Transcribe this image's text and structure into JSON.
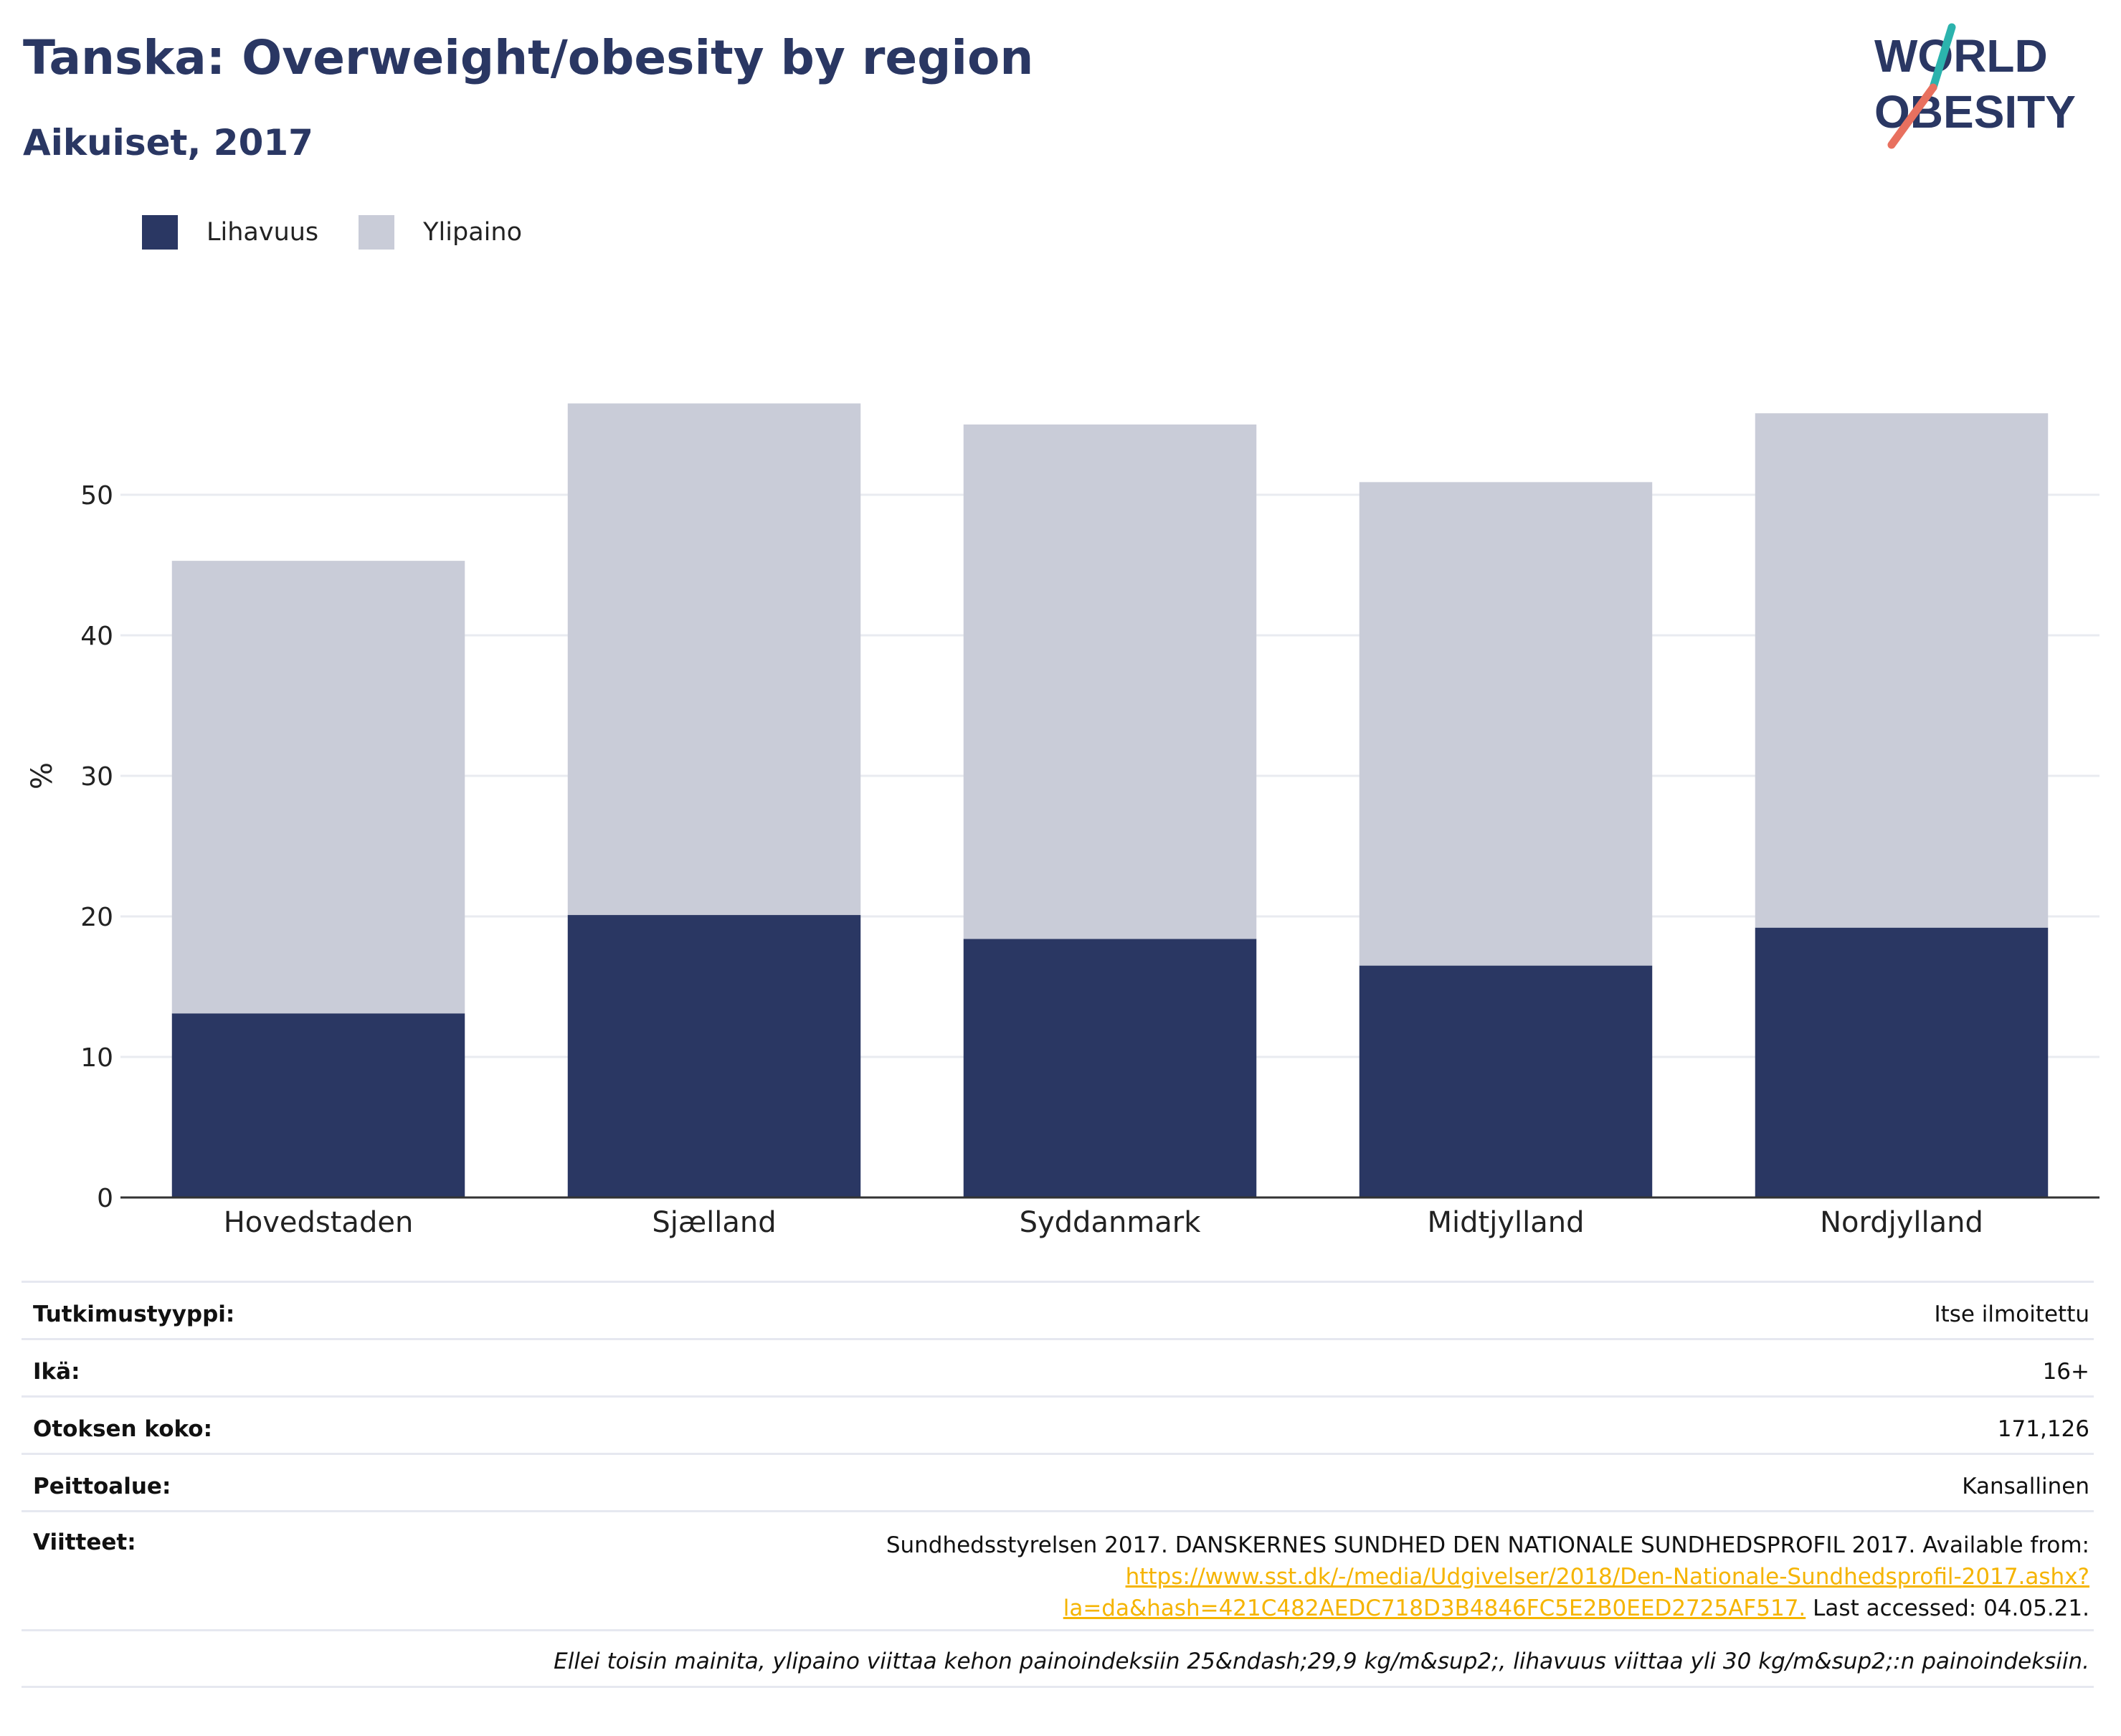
{
  "header": {
    "title": "Tanska: Overweight/obesity by region",
    "subtitle": "Aikuiset, 2017"
  },
  "logo": {
    "line1": "WORLD",
    "line2": "OBESITY",
    "colors": {
      "text": "#2a3763",
      "slash_top": "#2bb3ad",
      "slash_bottom": "#e8705f"
    }
  },
  "legend": [
    {
      "label": "Lihavuus",
      "color": "#2a3763"
    },
    {
      "label": "Ylipaino",
      "color": "#c9ccd8"
    }
  ],
  "chart_data": {
    "type": "bar",
    "stacked": true,
    "ylabel": "%",
    "ylim": [
      0,
      60
    ],
    "yticks": [
      0,
      10,
      20,
      30,
      40,
      50
    ],
    "grid": true,
    "legend_position": "top-left",
    "categories": [
      "Hovedstaden",
      "Sjælland",
      "Syddanmark",
      "Midtjylland",
      "Nordjylland"
    ],
    "series": [
      {
        "name": "Lihavuus",
        "color": "#2a3763",
        "values": [
          13.1,
          20.1,
          18.4,
          16.5,
          19.2
        ]
      },
      {
        "name": "Ylipaino",
        "color": "#c9ccd8",
        "values": [
          32.2,
          36.4,
          36.6,
          34.4,
          36.6
        ]
      }
    ]
  },
  "info": {
    "rows": [
      {
        "key": "Tutkimustyyppi:",
        "value": "Itse ilmoitettu"
      },
      {
        "key": "Ikä:",
        "value": "16+"
      },
      {
        "key": "Otoksen koko:",
        "value": "171,126"
      },
      {
        "key": "Peittoalue:",
        "value": "Kansallinen"
      }
    ],
    "references": {
      "key": "Viitteet:",
      "text_before": "Sundhedsstyrelsen 2017. DANSKERNES SUNDHED DEN NATIONALE SUNDHEDSPROFIL 2017. Available from: ",
      "link": "https://www.sst.dk/-/media/Udgivelser/2018/Den-Nationale-Sundhedsprofil-2017.ashx?la=da&hash=421C482AEDC718D3B4846FC5E2B0EED2725AF517.",
      "text_after": " Last accessed: 04.05.21."
    },
    "note": "Ellei toisin mainita, ylipaino viittaa kehon painoindeksiin 25&ndash;29,9 kg/m&sup2;, lihavuus viittaa yli 30 kg/m&sup2;:n painoindeksiin."
  }
}
